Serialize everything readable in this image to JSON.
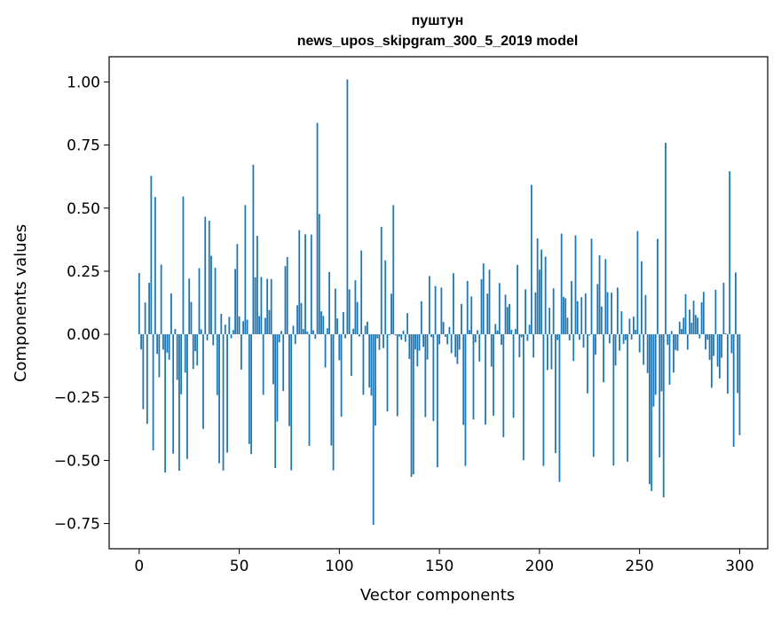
{
  "chart_data": {
    "type": "bar",
    "title": "пуштун",
    "subtitle": "news_upos_skipgram_300_5_2019 model",
    "xlabel": "Vector components",
    "ylabel": "Components values",
    "xlim": [
      -15,
      314
    ],
    "ylim": [
      -0.85,
      1.1
    ],
    "xticks": [
      0,
      50,
      100,
      150,
      200,
      250,
      300
    ],
    "xtick_labels": [
      "0",
      "50",
      "100",
      "150",
      "200",
      "250",
      "300"
    ],
    "yticks": [
      -0.75,
      -0.5,
      -0.25,
      0.0,
      0.25,
      0.5,
      0.75,
      1.0
    ],
    "ytick_labels": [
      "−0.75",
      "−0.50",
      "−0.25",
      "0.00",
      "0.25",
      "0.50",
      "0.75",
      "1.00"
    ],
    "grid": false,
    "color": "#1f77b4",
    "x": "0..299",
    "values": [
      0.243,
      -0.06,
      -0.297,
      0.126,
      -0.355,
      0.204,
      0.628,
      -0.46,
      0.544,
      -0.078,
      -0.17,
      0.276,
      -0.061,
      -0.548,
      -0.073,
      -0.101,
      0.162,
      -0.473,
      0.021,
      -0.181,
      -0.541,
      -0.238,
      0.546,
      -0.152,
      -0.494,
      0.221,
      0.128,
      -0.138,
      -0.067,
      -0.124,
      0.262,
      0.02,
      -0.375,
      0.466,
      -0.024,
      0.45,
      0.311,
      -0.044,
      0.264,
      -0.241,
      -0.511,
      0.081,
      -0.54,
      0.038,
      -0.469,
      0.069,
      -0.016,
      0.017,
      0.259,
      0.358,
      0.071,
      -0.14,
      0.052,
      0.512,
      0.058,
      -0.435,
      -0.475,
      0.672,
      0.226,
      0.39,
      0.072,
      0.227,
      -0.24,
      0.065,
      0.22,
      0.096,
      0.219,
      -0.198,
      -0.53,
      -0.346,
      -0.032,
      0.013,
      -0.225,
      0.27,
      0.306,
      -0.364,
      -0.539,
      0.034,
      -0.039,
      0.115,
      0.413,
      0.124,
      0.021,
      0.396,
      0.011,
      -0.442,
      0.395,
      0.016,
      -0.018,
      0.838,
      0.477,
      0.091,
      0.073,
      -0.132,
      0.024,
      0.247,
      -0.441,
      -0.539,
      0.181,
      0.063,
      -0.103,
      -0.327,
      0.088,
      -0.016,
      1.01,
      0.178,
      -0.165,
      0.022,
      0.214,
      0.128,
      -0.009,
      0.332,
      -0.24,
      0.034,
      0.05,
      -0.211,
      -0.243,
      -0.755,
      -0.362,
      -0.016,
      -0.062,
      0.426,
      -0.055,
      0.293,
      -0.306,
      -0.004,
      0.161,
      0.512,
      -0.004,
      -0.325,
      -0.009,
      -0.022,
      0.014,
      -0.03,
      0.084,
      -0.098,
      -0.565,
      -0.555,
      -0.06,
      -0.127,
      -0.065,
      0.131,
      -0.05,
      -0.328,
      -0.1,
      0.231,
      -0.011,
      -0.344,
      0.191,
      -0.527,
      -0.04,
      0.185,
      0.049,
      -0.01,
      -0.04,
      0.029,
      -0.075,
      0.242,
      -0.09,
      -0.118,
      -0.061,
      0.12,
      -0.359,
      -0.522,
      0.211,
      0.017,
      0.15,
      -0.338,
      -0.032,
      0.016,
      -0.108,
      0.218,
      0.281,
      -0.358,
      0.161,
      0.256,
      -0.128,
      -0.323,
      0.041,
      0.015,
      0.203,
      -0.042,
      -0.408,
      0.157,
      0.108,
      0.12,
      0.018,
      -0.331,
      0.021,
      0.275,
      -0.091,
      -0.012,
      -0.499,
      0.178,
      -0.026,
      0.038,
      0.592,
      -0.092,
      0.166,
      0.38,
      0.256,
      0.336,
      -0.522,
      0.308,
      -0.142,
      0.105,
      -0.139,
      0.182,
      -0.471,
      -0.023,
      -0.585,
      0.399,
      0.148,
      0.143,
      0.066,
      -0.024,
      0.211,
      -0.106,
      0.392,
      0.131,
      -0.022,
      0.147,
      -0.053,
      0.162,
      -0.234,
      -0.005,
      0.379,
      -0.486,
      -0.081,
      0.199,
      0.313,
      0.11,
      -0.19,
      0.298,
      0.167,
      -0.036,
      0.165,
      -0.52,
      -0.124,
      0.185,
      -0.065,
      0.091,
      -0.038,
      -0.023,
      -0.505,
      0.062,
      -0.021,
      0.07,
      0.018,
      0.409,
      -0.072,
      0.289,
      -0.121,
      0.156,
      -0.154,
      -0.594,
      -0.621,
      -0.287,
      -0.24,
      0.378,
      -0.488,
      -0.226,
      -0.646,
      0.759,
      -0.042,
      -0.2,
      0.013,
      -0.152,
      -0.062,
      -0.066,
      0.05,
      0.021,
      0.066,
      0.159,
      -0.061,
      0.098,
      0.046,
      0.133,
      0.077,
      0.066,
      -0.016,
      0.127,
      0.168,
      -0.06,
      -0.022,
      -0.101,
      -0.212,
      -0.086,
      0.176,
      -0.128,
      -0.175,
      -0.093,
      0.204,
      0.004,
      -0.235,
      0.646,
      -0.075,
      -0.446,
      0.245,
      -0.233,
      -0.4
    ]
  }
}
